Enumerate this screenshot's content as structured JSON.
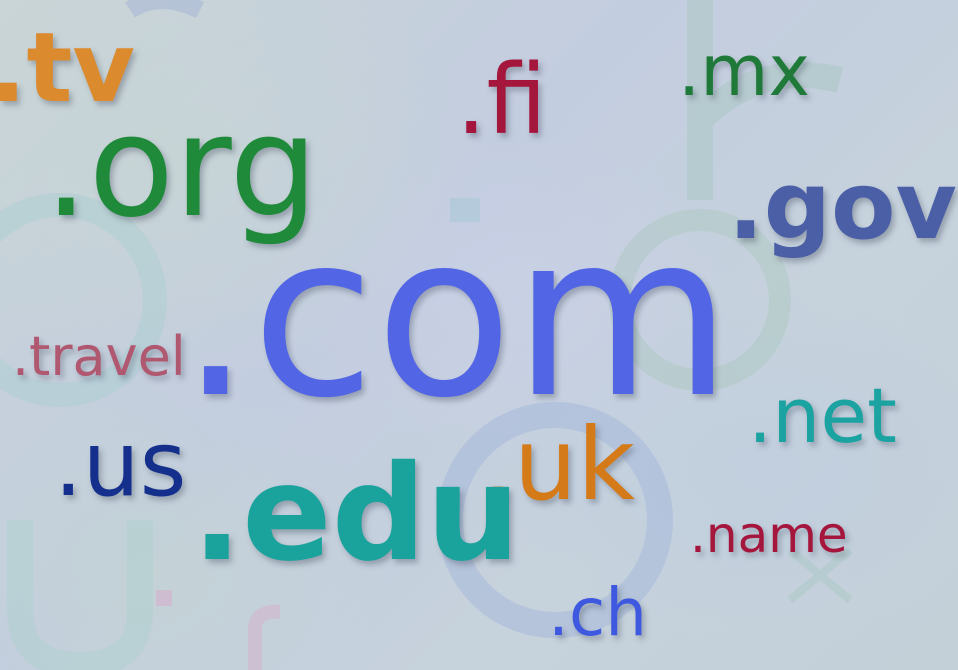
{
  "scene": {
    "palette": {
      "background": "#c6d1dc",
      "tv": "#dc8a2e",
      "fi": "#a5163d",
      "mx": "#1f7a3a",
      "org": "#1f8a3a",
      "gov": "#4a5fa6",
      "com": "#4f63e6",
      "travel": "#b05870",
      "net": "#1aa3a0",
      "uk": "#d47a18",
      "us": "#142f8c",
      "edu": "#19a39c",
      "name": "#a5163d",
      "ch": "#3f58e0"
    },
    "primary_labels": {
      "tv": ".tv",
      "fi": ".fi",
      "mx": ".mx",
      "org": ".org",
      "gov": ".gov",
      "com": ".com",
      "travel": ".travel",
      "net": ".net",
      "uk": ".uk",
      "us": ".us",
      "edu": ".edu",
      "name": ".name",
      "ch": ".ch"
    }
  }
}
